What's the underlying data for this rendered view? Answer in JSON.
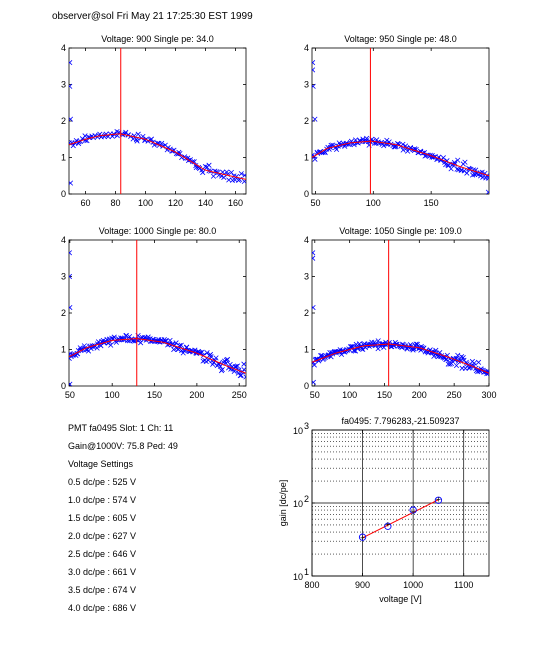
{
  "header": "observer@sol  Fri May 21 17:25:30 EST 1999",
  "info": {
    "pmt_line": "PMT fa0495 Slot: 1 Ch: 11",
    "gain_line": "Gain@1000V: 75.8 Ped: 49",
    "settings_title": "Voltage Settings",
    "settings": [
      "0.5 dc/pe : 525 V",
      "1.0 dc/pe : 574 V",
      "1.5 dc/pe : 605 V",
      "2.0 dc/pe : 627 V",
      "2.5 dc/pe : 646 V",
      "3.0 dc/pe : 661 V",
      "3.5 dc/pe : 674 V",
      "4.0 dc/pe : 686 V"
    ]
  },
  "colors": {
    "points": "#0000ff",
    "fit": "#ff0000",
    "marker": "#ff0000"
  },
  "chart_data": [
    {
      "type": "scatter",
      "title": "Voltage: 900 Single pe: 34.0",
      "xlim": [
        49,
        167
      ],
      "ylim": [
        0,
        4
      ],
      "xticks": [
        60,
        80,
        100,
        120,
        140,
        160
      ],
      "yticks": [
        0,
        1,
        2,
        3,
        4
      ],
      "marker_x": 83.5,
      "fit": {
        "x": [
          49,
          60,
          70,
          83,
          100,
          120,
          140,
          167
        ],
        "y": [
          1.35,
          1.5,
          1.6,
          1.65,
          1.5,
          1.15,
          0.65,
          0.4
        ]
      },
      "outliers": [
        {
          "x": 49.5,
          "y": 3.6
        },
        {
          "x": 49.5,
          "y": 2.95
        },
        {
          "x": 50,
          "y": 2.05
        },
        {
          "x": 50,
          "y": 0.3
        }
      ],
      "noise": 0.07,
      "tail_noise": 0.12,
      "n_points": 110,
      "seed": 3
    },
    {
      "type": "scatter",
      "title": "Voltage: 950 Single pe: 48.0",
      "xlim": [
        47,
        200
      ],
      "ylim": [
        0,
        4
      ],
      "xticks": [
        50,
        100,
        150
      ],
      "yticks": [
        0,
        1,
        2,
        3,
        4
      ],
      "marker_x": 97.5,
      "fit": {
        "x": [
          47,
          60,
          80,
          98,
          120,
          150,
          175,
          200
        ],
        "y": [
          1.0,
          1.25,
          1.4,
          1.45,
          1.35,
          1.05,
          0.75,
          0.5
        ]
      },
      "outliers": [
        {
          "x": 47.5,
          "y": 3.6
        },
        {
          "x": 47.5,
          "y": 3.4
        },
        {
          "x": 48,
          "y": 2.95
        },
        {
          "x": 49.5,
          "y": 2.05
        },
        {
          "x": 199.5,
          "y": 0.05
        }
      ],
      "noise": 0.07,
      "tail_noise": 0.14,
      "n_points": 140,
      "seed": 7
    },
    {
      "type": "scatter",
      "title": "Voltage: 1000 Single pe: 80.0",
      "xlim": [
        49,
        258
      ],
      "ylim": [
        0,
        4
      ],
      "xticks": [
        50,
        100,
        150,
        200,
        250
      ],
      "yticks": [
        0,
        1,
        2,
        3,
        4
      ],
      "marker_x": 129,
      "fit": {
        "x": [
          49,
          70,
          100,
          129,
          160,
          200,
          235,
          258
        ],
        "y": [
          0.8,
          1.05,
          1.25,
          1.3,
          1.2,
          0.9,
          0.55,
          0.35
        ]
      },
      "outliers": [
        {
          "x": 49.5,
          "y": 3.65
        },
        {
          "x": 49.5,
          "y": 3.0
        },
        {
          "x": 50,
          "y": 2.15
        },
        {
          "x": 50,
          "y": 0.05
        }
      ],
      "noise": 0.08,
      "tail_noise": 0.15,
      "n_points": 170,
      "seed": 11
    },
    {
      "type": "scatter",
      "title": "Voltage: 1050 Single pe: 109.0",
      "xlim": [
        46,
        300
      ],
      "ylim": [
        0,
        4
      ],
      "xticks": [
        50,
        100,
        150,
        200,
        250,
        300
      ],
      "yticks": [
        0,
        1,
        2,
        3,
        4
      ],
      "marker_x": 156,
      "fit": {
        "x": [
          46,
          80,
          120,
          156,
          200,
          240,
          275,
          300
        ],
        "y": [
          0.65,
          0.9,
          1.1,
          1.15,
          1.05,
          0.8,
          0.55,
          0.35
        ]
      },
      "outliers": [
        {
          "x": 47,
          "y": 3.65
        },
        {
          "x": 47,
          "y": 3.5
        },
        {
          "x": 47.5,
          "y": 2.15
        },
        {
          "x": 48,
          "y": 0.1
        }
      ],
      "noise": 0.08,
      "tail_noise": 0.15,
      "n_points": 190,
      "seed": 19
    },
    {
      "type": "scatter",
      "title": "fa0495: 7.796283,-21.509237",
      "xlabel": "voltage [V]",
      "ylabel": "gain [dc/pe]",
      "yscale": "log",
      "grid": true,
      "xlim": [
        800,
        1150
      ],
      "ylim": [
        10,
        1000
      ],
      "xticks": [
        800,
        900,
        1000,
        1100
      ],
      "yticks": [
        10,
        100,
        1000
      ],
      "ytick_labels": [
        {
          "base": "10",
          "exp": "1"
        },
        {
          "base": "10",
          "exp": "2"
        },
        {
          "base": "10",
          "exp": "3"
        }
      ],
      "x": [
        900,
        950,
        1000,
        1050
      ],
      "y": [
        34.0,
        48.0,
        80.0,
        109.0
      ],
      "fit": {
        "slope": 7.796283,
        "intercept": -21.509237,
        "xrange": [
          900,
          1050
        ]
      }
    }
  ]
}
